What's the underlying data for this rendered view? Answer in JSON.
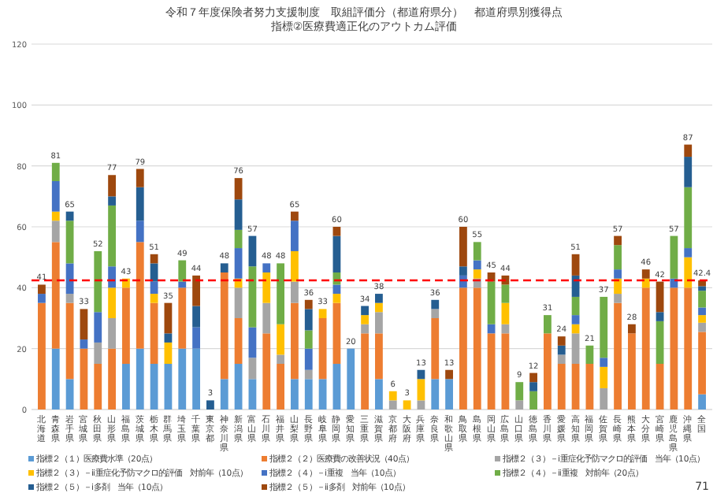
{
  "chart_data": {
    "type": "bar",
    "stacked": true,
    "title": "令和７年度保険者努力支援制度　取組評価分（都道府県分）　都道府県別獲得点",
    "subtitle": "指標②医療費適正化のアウトカム評価",
    "categories": [
      "北海道",
      "青森県",
      "岩手県",
      "宮城県",
      "秋田県",
      "山形県",
      "福島県",
      "茨城県",
      "栃木県",
      "群馬県",
      "埼玉県",
      "千葉県",
      "東京都",
      "神奈川県",
      "新潟県",
      "富山県",
      "石川県",
      "福井県",
      "山梨県",
      "長野県",
      "岐阜県",
      "静岡県",
      "愛知県",
      "三重県",
      "滋賀県",
      "京都府",
      "大阪府",
      "兵庫県",
      "奈良県",
      "和歌山県",
      "鳥取県",
      "島根県",
      "岡山県",
      "広島県",
      "山口県",
      "徳島県",
      "香川県",
      "愛媛県",
      "高知県",
      "福岡県",
      "佐賀県",
      "長崎県",
      "熊本県",
      "大分県",
      "宮崎県",
      "鹿児島県",
      "沖縄県",
      "全国"
    ],
    "series": [
      {
        "name": "指標２（１）医療費水準（20点）",
        "color": "#5b9bd5",
        "values": [
          0,
          20,
          10,
          0,
          0,
          0,
          15,
          20,
          15,
          15,
          20,
          20,
          0,
          10,
          15,
          10,
          0,
          0,
          10,
          10,
          10,
          15,
          20,
          0,
          10,
          0,
          0,
          0,
          10,
          10,
          0,
          0,
          0,
          0,
          0,
          0,
          0,
          0,
          0,
          0,
          0,
          0,
          0,
          0,
          0,
          0,
          0,
          5
        ]
      },
      {
        "name": "指標２（２）医療費の改善状況（40点）",
        "color": "#ed7d31",
        "values": [
          35,
          35,
          25,
          20,
          15,
          20,
          25,
          35,
          20,
          0,
          20,
          0,
          0,
          35,
          15,
          0,
          25,
          15,
          25,
          0,
          20,
          20,
          0,
          25,
          15,
          0,
          0,
          0,
          20,
          0,
          40,
          40,
          25,
          25,
          0,
          0,
          25,
          15,
          15,
          15,
          0,
          35,
          25,
          40,
          15,
          40,
          40,
          20.5
        ]
      },
      {
        "name": "指標２（３）－ⅰ重症化予防マクロ的評価　当年（10点）",
        "color": "#a5a5a5",
        "values": [
          0,
          7,
          3,
          0,
          7,
          10,
          0,
          0,
          0,
          0,
          0,
          0,
          0,
          0,
          10,
          7,
          10,
          3,
          7,
          3,
          0,
          0,
          0,
          3,
          7,
          3,
          0,
          3,
          3,
          0,
          0,
          3,
          0,
          3,
          3,
          0,
          0,
          3,
          10,
          0,
          7,
          3,
          0,
          0,
          0,
          0,
          0,
          3
        ]
      },
      {
        "name": "指標２（３）－ⅱ重症化予防マクロ的評価　対前年（10点）",
        "color": "#ffc000",
        "values": [
          0,
          3,
          0,
          0,
          0,
          10,
          3,
          0,
          3,
          7,
          0,
          0,
          0,
          0,
          3,
          0,
          10,
          10,
          10,
          0,
          3,
          3,
          0,
          3,
          3,
          3,
          3,
          7,
          0,
          0,
          0,
          3,
          0,
          7,
          0,
          0,
          0,
          0,
          3,
          0,
          7,
          5,
          0,
          3,
          0,
          0,
          10,
          2.5
        ]
      },
      {
        "name": "指標２（４）－ⅰ重複　当年（10点）",
        "color": "#4472c4",
        "values": [
          3,
          10,
          10,
          3,
          10,
          7,
          0,
          7,
          4,
          0,
          2,
          7,
          0,
          0,
          10,
          10,
          3,
          0,
          10,
          7,
          0,
          3,
          0,
          0,
          0,
          0,
          0,
          0,
          0,
          0,
          4,
          3,
          3,
          0,
          0,
          0,
          0,
          0,
          3,
          0,
          3,
          3,
          0,
          0,
          0,
          3,
          3,
          2.5
        ]
      },
      {
        "name": "指標２（４）－ⅱ重複　対前年（20点）",
        "color": "#70ad47",
        "values": [
          0,
          6,
          14,
          0,
          20,
          20,
          0,
          0,
          0,
          0,
          7,
          0,
          0,
          0,
          6,
          20,
          0,
          20,
          0,
          6,
          0,
          4,
          0,
          0,
          0,
          0,
          0,
          0,
          0,
          0,
          0,
          6,
          14,
          6,
          6,
          6,
          6,
          0,
          6,
          6,
          20,
          8,
          0,
          0,
          14,
          14,
          20,
          5.5
        ]
      },
      {
        "name": "指標２（５）－ⅰ多剤　当年（10点）",
        "color": "#255e91",
        "values": [
          0,
          0,
          3,
          0,
          0,
          3,
          0,
          11,
          6,
          3,
          0,
          7,
          3,
          3,
          10,
          10,
          0,
          0,
          0,
          7,
          0,
          12,
          0,
          3,
          3,
          0,
          0,
          3,
          3,
          0,
          3,
          0,
          0,
          0,
          0,
          3,
          0,
          3,
          7,
          0,
          0,
          0,
          0,
          0,
          3,
          0,
          10,
          1.5
        ]
      },
      {
        "name": "指標２（５）－ⅱ多剤　対前年（10点）",
        "color": "#9e480e",
        "values": [
          3,
          0,
          0,
          10,
          0,
          7,
          0,
          6,
          3,
          10,
          0,
          10,
          0,
          0,
          7,
          0,
          0,
          0,
          3,
          3,
          0,
          3,
          0,
          0,
          0,
          0,
          0,
          0,
          0,
          3,
          13,
          0,
          3,
          3,
          0,
          3,
          0,
          3,
          7,
          0,
          0,
          3,
          3,
          3,
          10,
          0,
          4,
          1.9
        ]
      }
    ],
    "totals": [
      "41",
      "81",
      "65",
      "33",
      "52",
      "77",
      "43",
      "79",
      "51",
      "35",
      "49",
      "44",
      "3",
      "48",
      "76",
      "57",
      "48",
      "48",
      "65",
      "36",
      "33",
      "60",
      "20",
      "34",
      "38",
      "6",
      "3",
      "13",
      "36",
      "13",
      "60",
      "55",
      "45",
      "44",
      "9",
      "12",
      "31",
      "24",
      "51",
      "21",
      "37",
      "57",
      "28",
      "46",
      "42",
      "57",
      "87",
      "42.4"
    ],
    "ylim": [
      0,
      120
    ],
    "yticks": [
      0,
      20,
      40,
      60,
      80,
      100,
      120
    ],
    "grid": "y",
    "legend": "bottom",
    "ref_lines": [
      {
        "axis": "y",
        "value": 42.4,
        "color": "#ff0000",
        "line_style": "dashed"
      }
    ],
    "annotations": [
      "71"
    ]
  }
}
